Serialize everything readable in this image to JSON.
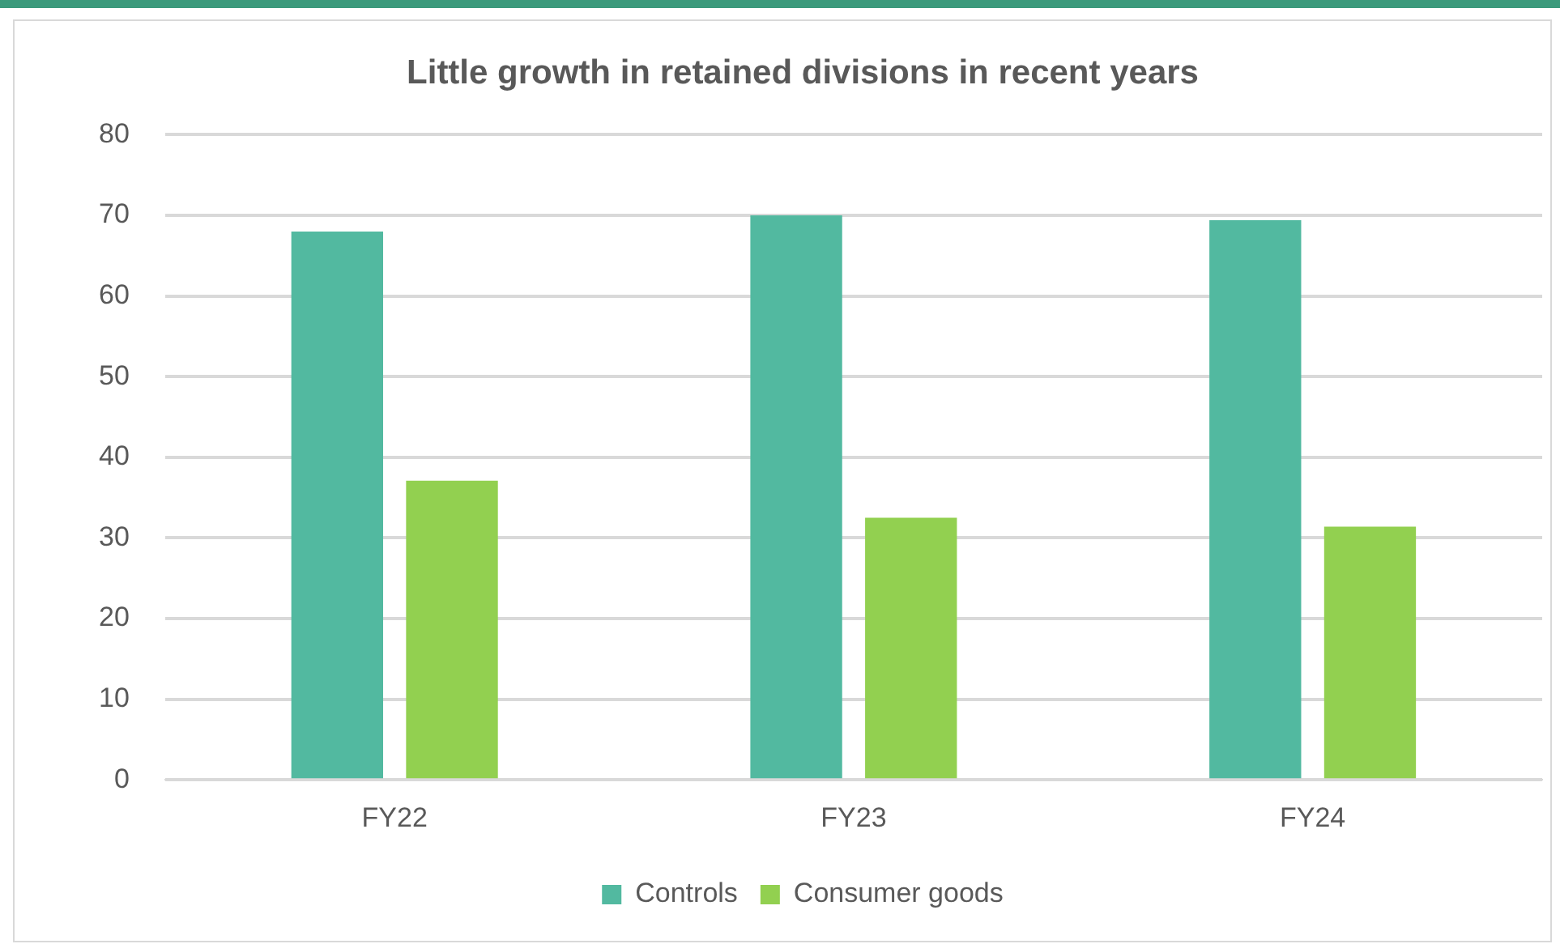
{
  "chart_data": {
    "type": "bar",
    "title": "Little growth in retained divisions in recent years",
    "categories": [
      "FY22",
      "FY23",
      "FY24"
    ],
    "series": [
      {
        "name": "Controls",
        "color": "#52b9a0",
        "values": [
          68.0,
          70.0,
          69.4
        ]
      },
      {
        "name": "Consumer goods",
        "color": "#92d050",
        "values": [
          37.1,
          32.5,
          31.4
        ]
      }
    ],
    "ylim": [
      0,
      80
    ],
    "yticks": [
      0,
      10,
      20,
      30,
      40,
      50,
      60,
      70,
      80
    ],
    "grid": "y",
    "legend": "bottom"
  }
}
